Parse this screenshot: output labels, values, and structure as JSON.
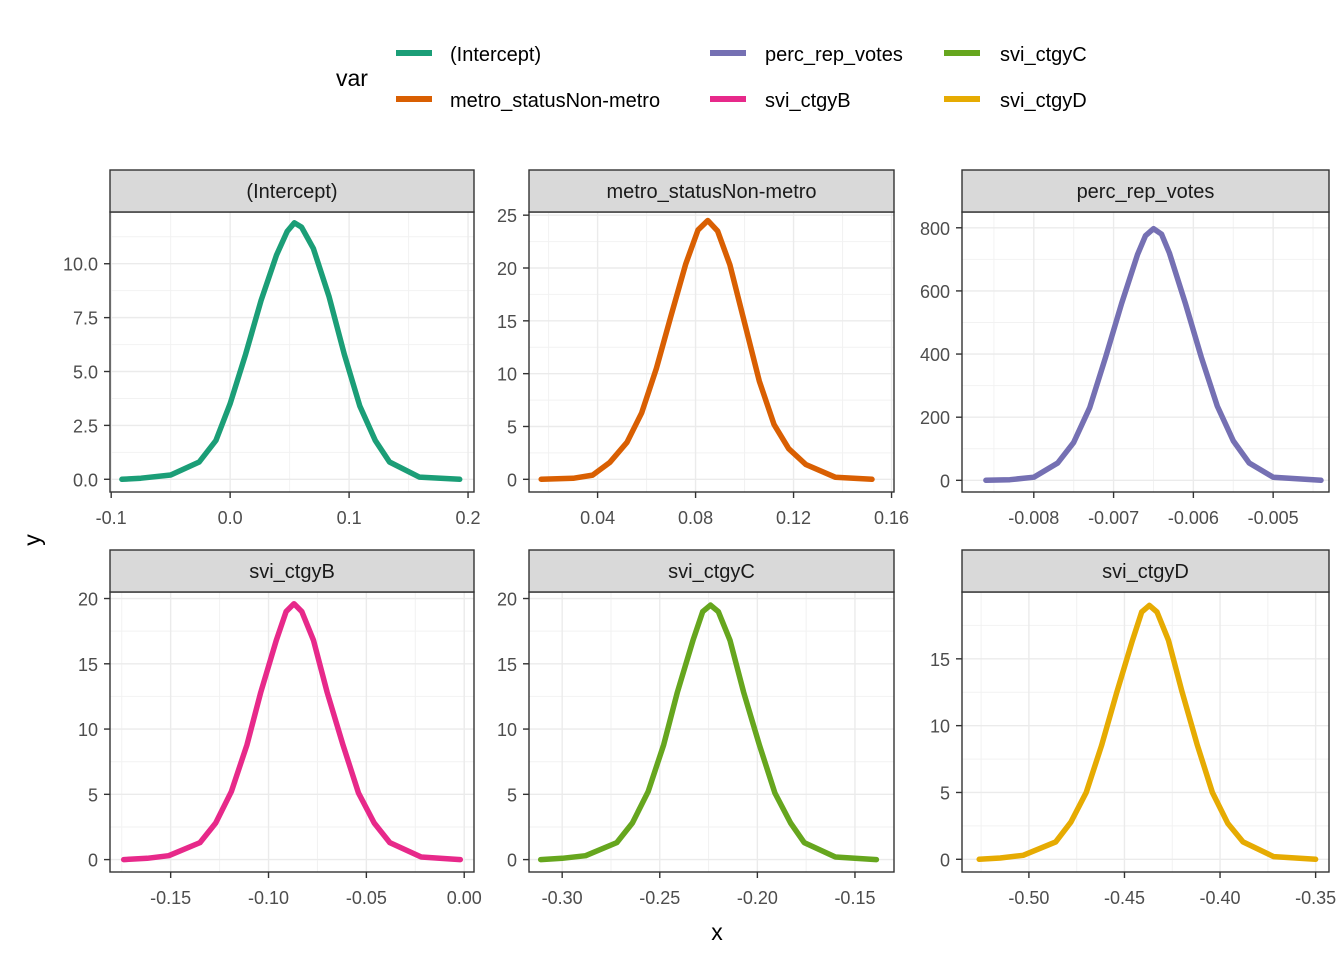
{
  "legend": {
    "title": "var",
    "items": [
      {
        "label": "(Intercept)",
        "color": "#1b9e77"
      },
      {
        "label": "metro_statusNon-metro",
        "color": "#d95f02"
      },
      {
        "label": "perc_rep_votes",
        "color": "#7570b3"
      },
      {
        "label": "svi_ctgyB",
        "color": "#e7298a"
      },
      {
        "label": "svi_ctgyC",
        "color": "#66a61e"
      },
      {
        "label": "svi_ctgyD",
        "color": "#e6ab02"
      }
    ]
  },
  "axis": {
    "xlabel": "x",
    "ylabel": "y"
  },
  "chart_data": [
    {
      "type": "line",
      "title": "(Intercept)",
      "color": "#1b9e77",
      "xlim": [
        -0.101,
        0.205
      ],
      "ylim": [
        -0.59,
        12.4
      ],
      "xticks": [
        -0.1,
        0.0,
        0.1,
        0.2
      ],
      "xticklabels": [
        "-0.1",
        "0.0",
        "0.1",
        "0.2"
      ],
      "yticks": [
        0,
        2.5,
        5,
        7.5,
        10
      ],
      "yticklabels": [
        "0.0",
        "2.5",
        "5.0",
        "7.5",
        "10.0"
      ],
      "series": [
        {
          "x": [
            -0.091,
            -0.075,
            -0.05,
            -0.026,
            -0.012,
            0.0,
            0.013,
            0.026,
            0.039,
            0.048,
            0.054,
            0.06,
            0.07,
            0.083,
            0.096,
            0.109,
            0.122,
            0.134,
            0.159,
            0.193
          ],
          "y": [
            0.0,
            0.05,
            0.2,
            0.8,
            1.8,
            3.5,
            5.8,
            8.3,
            10.4,
            11.5,
            11.9,
            11.7,
            10.7,
            8.5,
            5.8,
            3.4,
            1.8,
            0.8,
            0.1,
            0.0
          ]
        }
      ]
    },
    {
      "type": "line",
      "title": "metro_statusNon-metro",
      "color": "#d95f02",
      "xlim": [
        0.012,
        0.161
      ],
      "ylim": [
        -1.2,
        25.3
      ],
      "xticks": [
        0.04,
        0.08,
        0.12,
        0.16
      ],
      "xticklabels": [
        "0.04",
        "0.08",
        "0.12",
        "0.16"
      ],
      "yticks": [
        0,
        5,
        10,
        15,
        20,
        25
      ],
      "yticklabels": [
        "0",
        "5",
        "10",
        "15",
        "20",
        "25"
      ],
      "series": [
        {
          "x": [
            0.017,
            0.03,
            0.038,
            0.045,
            0.052,
            0.058,
            0.064,
            0.07,
            0.076,
            0.081,
            0.085,
            0.089,
            0.094,
            0.1,
            0.106,
            0.112,
            0.118,
            0.125,
            0.137,
            0.152
          ],
          "y": [
            0.0,
            0.1,
            0.4,
            1.6,
            3.5,
            6.3,
            10.5,
            15.5,
            20.4,
            23.6,
            24.5,
            23.5,
            20.3,
            14.8,
            9.3,
            5.2,
            2.9,
            1.4,
            0.2,
            0.0
          ]
        }
      ]
    },
    {
      "type": "line",
      "title": "perc_rep_votes",
      "color": "#7570b3",
      "xlim": [
        -0.0089,
        -0.0043
      ],
      "ylim": [
        -37,
        850
      ],
      "xticks": [
        -0.008,
        -0.007,
        -0.006,
        -0.005
      ],
      "xticklabels": [
        "-0.008",
        "-0.007",
        "-0.006",
        "-0.005"
      ],
      "yticks": [
        0,
        200,
        400,
        600,
        800
      ],
      "yticklabels": [
        "0",
        "200",
        "400",
        "600",
        "800"
      ],
      "series": [
        {
          "x": [
            -0.0086,
            -0.0083,
            -0.008,
            -0.0077,
            -0.0075,
            -0.0073,
            -0.0071,
            -0.0069,
            -0.0067,
            -0.0066,
            -0.0065,
            -0.0064,
            -0.0063,
            -0.0061,
            -0.0059,
            -0.0057,
            -0.0055,
            -0.0053,
            -0.005,
            -0.0044
          ],
          "y": [
            0.0,
            2,
            10,
            55,
            120,
            230,
            390,
            560,
            715,
            775,
            797,
            780,
            720,
            560,
            390,
            235,
            125,
            55,
            10,
            0
          ]
        }
      ]
    },
    {
      "type": "line",
      "title": "svi_ctgyB",
      "color": "#e7298a",
      "xlim": [
        -0.181,
        0.005
      ],
      "ylim": [
        -0.95,
        20.5
      ],
      "xticks": [
        -0.15,
        -0.1,
        -0.05,
        0.0
      ],
      "xticklabels": [
        "-0.15",
        "-0.10",
        "-0.05",
        "0.00"
      ],
      "yticks": [
        0,
        5,
        10,
        15,
        20
      ],
      "yticklabels": [
        "0",
        "5",
        "10",
        "15",
        "20"
      ],
      "series": [
        {
          "x": [
            -0.174,
            -0.162,
            -0.151,
            -0.135,
            -0.127,
            -0.119,
            -0.111,
            -0.104,
            -0.096,
            -0.091,
            -0.087,
            -0.083,
            -0.077,
            -0.07,
            -0.062,
            -0.054,
            -0.046,
            -0.038,
            -0.022,
            -0.002
          ],
          "y": [
            0.0,
            0.1,
            0.3,
            1.3,
            2.8,
            5.2,
            8.8,
            12.8,
            16.8,
            19.0,
            19.6,
            19.0,
            16.8,
            12.8,
            8.8,
            5.1,
            2.8,
            1.3,
            0.2,
            0.0
          ]
        }
      ]
    },
    {
      "type": "line",
      "title": "svi_ctgyC",
      "color": "#66a61e",
      "xlim": [
        -0.317,
        -0.13
      ],
      "ylim": [
        -0.95,
        20.5
      ],
      "xticks": [
        -0.3,
        -0.25,
        -0.2,
        -0.15
      ],
      "xticklabels": [
        "-0.30",
        "-0.25",
        "-0.20",
        "-0.15"
      ],
      "yticks": [
        0,
        5,
        10,
        15,
        20
      ],
      "yticklabels": [
        "0",
        "5",
        "10",
        "15",
        "20"
      ],
      "series": [
        {
          "x": [
            -0.311,
            -0.3,
            -0.288,
            -0.272,
            -0.264,
            -0.256,
            -0.248,
            -0.241,
            -0.233,
            -0.228,
            -0.224,
            -0.22,
            -0.214,
            -0.207,
            -0.199,
            -0.191,
            -0.183,
            -0.176,
            -0.16,
            -0.139
          ],
          "y": [
            0.0,
            0.1,
            0.3,
            1.3,
            2.8,
            5.2,
            8.8,
            12.8,
            16.8,
            19.0,
            19.5,
            19.0,
            16.8,
            12.8,
            8.8,
            5.1,
            2.8,
            1.3,
            0.2,
            0.0
          ]
        }
      ]
    },
    {
      "type": "line",
      "title": "svi_ctgyD",
      "color": "#e6ab02",
      "xlim": [
        -0.535,
        -0.343
      ],
      "ylim": [
        -0.95,
        20.0
      ],
      "xticks": [
        -0.5,
        -0.45,
        -0.4,
        -0.35
      ],
      "xticklabels": [
        "-0.50",
        "-0.45",
        "-0.40",
        "-0.35"
      ],
      "yticks": [
        0,
        5,
        10,
        15
      ],
      "yticklabels": [
        "0",
        "5",
        "10",
        "15"
      ],
      "series": [
        {
          "x": [
            -0.526,
            -0.515,
            -0.503,
            -0.486,
            -0.478,
            -0.47,
            -0.462,
            -0.454,
            -0.446,
            -0.441,
            -0.437,
            -0.433,
            -0.427,
            -0.42,
            -0.412,
            -0.404,
            -0.396,
            -0.388,
            -0.372,
            -0.35
          ],
          "y": [
            0.0,
            0.1,
            0.3,
            1.3,
            2.8,
            5.0,
            8.5,
            12.5,
            16.3,
            18.5,
            19.0,
            18.5,
            16.4,
            12.6,
            8.6,
            5.0,
            2.7,
            1.3,
            0.2,
            0.0
          ]
        }
      ]
    }
  ]
}
